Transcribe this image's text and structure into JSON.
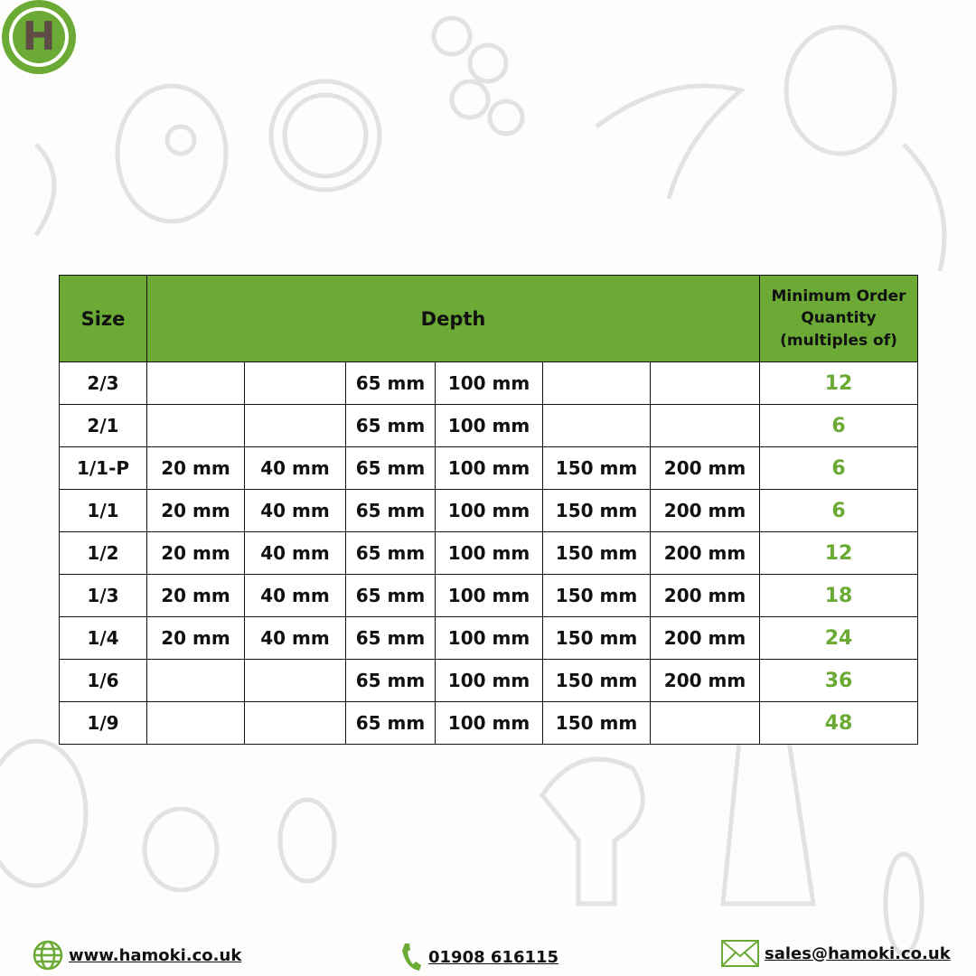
{
  "brand": {
    "logo_letter": "H",
    "color": "#6aaa35",
    "letter_color": "#5e4c47"
  },
  "table": {
    "headers": {
      "size": "Size",
      "depth": "Depth",
      "moq": "Minimum Order Quantity (multiples of)"
    },
    "rows": [
      {
        "size": "2/3",
        "depths": [
          "",
          "",
          "65 mm",
          "100 mm",
          "",
          ""
        ],
        "moq": "12"
      },
      {
        "size": "2/1",
        "depths": [
          "",
          "",
          "65 mm",
          "100 mm",
          "",
          ""
        ],
        "moq": "6"
      },
      {
        "size": "1/1-P",
        "depths": [
          "20 mm",
          "40 mm",
          "65 mm",
          "100 mm",
          "150 mm",
          "200 mm"
        ],
        "moq": "6"
      },
      {
        "size": "1/1",
        "depths": [
          "20 mm",
          "40 mm",
          "65 mm",
          "100 mm",
          "150 mm",
          "200 mm"
        ],
        "moq": "6"
      },
      {
        "size": "1/2",
        "depths": [
          "20 mm",
          "40 mm",
          "65 mm",
          "100 mm",
          "150 mm",
          "200 mm"
        ],
        "moq": "12"
      },
      {
        "size": "1/3",
        "depths": [
          "20 mm",
          "40 mm",
          "65 mm",
          "100 mm",
          "150 mm",
          "200 mm"
        ],
        "moq": "18"
      },
      {
        "size": "1/4",
        "depths": [
          "20 mm",
          "40 mm",
          "65 mm",
          "100 mm",
          "150 mm",
          "200 mm"
        ],
        "moq": "24"
      },
      {
        "size": "1/6",
        "depths": [
          "",
          "",
          "65 mm",
          "100 mm",
          "150 mm",
          "200 mm"
        ],
        "moq": "36"
      },
      {
        "size": "1/9",
        "depths": [
          "",
          "",
          "65 mm",
          "100 mm",
          "150 mm",
          ""
        ],
        "moq": "48"
      }
    ]
  },
  "footer": {
    "website": "www.hamoki.co.uk",
    "phone": "01908 616115",
    "email": "sales@hamoki.co.uk",
    "icons": [
      "globe-icon",
      "phone-icon",
      "envelope-icon"
    ]
  }
}
